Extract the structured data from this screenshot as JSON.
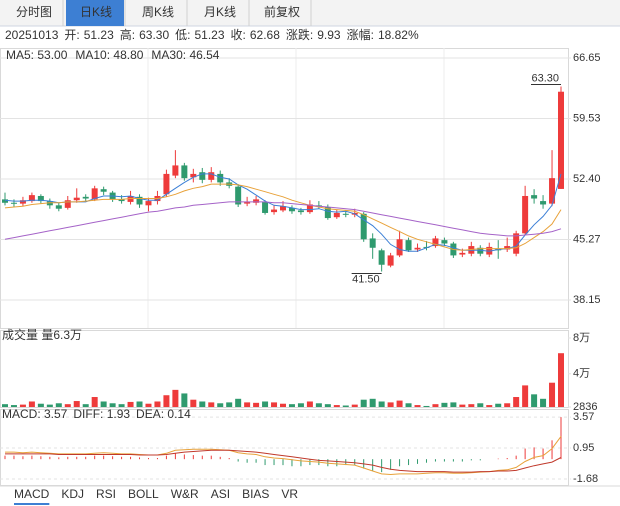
{
  "tabs": [
    "分时图",
    "日K线",
    "周K线",
    "月K线",
    "前复权"
  ],
  "active_tab": 1,
  "info": {
    "date": "20251013",
    "fields": [
      {
        "label": "开:",
        "value": "51.23",
        "color": "#3a9a8a"
      },
      {
        "label": "高:",
        "value": "63.30",
        "color": "#e83c3c"
      },
      {
        "label": "低:",
        "value": "51.23",
        "color": "#3a9a8a"
      },
      {
        "label": "收:",
        "value": "62.68",
        "color": "#e83c3c"
      },
      {
        "label": "涨跌:",
        "value": "9.93",
        "color": "#e83c3c"
      },
      {
        "label": "涨幅:",
        "value": "18.82%",
        "color": "#e83c3c"
      }
    ]
  },
  "indicator_tabs": [
    "MACD",
    "KDJ",
    "RSI",
    "BOLL",
    "W&R",
    "ASI",
    "BIAS",
    "VR"
  ],
  "active_indicator": 0,
  "chart_data": [
    {
      "type": "candlestick",
      "up_color": "#ee3b3b",
      "down_color": "#2f9a6e",
      "grid": true,
      "ylim": [
        34.85,
        67.83
      ],
      "yticks": [
        66.65,
        59.53,
        {
          "value": 52.4,
          "label": "52.40"
        },
        45.27,
        38.15
      ],
      "open": [
        50.0,
        49.6,
        49.5,
        49.8,
        50.4,
        49.8,
        49.3,
        49.0,
        49.9,
        50.3,
        50.0,
        51.2,
        50.8,
        50.0,
        49.7,
        50.3,
        49.3,
        49.8,
        50.6,
        52.8,
        54.0,
        52.6,
        53.2,
        52.3,
        53.0,
        52.0,
        51.5,
        49.5,
        49.6,
        49.7,
        48.5,
        48.7,
        49.0,
        48.7,
        48.5,
        49.3,
        49.1,
        47.9,
        48.3,
        48.2,
        48.3,
        45.4,
        44.0,
        42.2,
        43.4,
        45.2,
        44.1,
        44.4,
        44.5,
        45.2,
        44.8,
        43.5,
        43.6,
        44.3,
        43.5,
        44.2,
        44.1,
        43.6,
        46.0,
        50.5,
        49.8,
        49.5,
        51.23
      ],
      "high": [
        50.8,
        50.0,
        50.3,
        50.8,
        50.6,
        50.1,
        49.6,
        50.4,
        51.3,
        50.6,
        51.6,
        51.5,
        51.0,
        50.5,
        51.0,
        50.6,
        50.2,
        51.0,
        53.5,
        55.8,
        54.3,
        53.6,
        53.7,
        53.8,
        53.4,
        52.5,
        51.8,
        50.3,
        50.4,
        49.9,
        49.3,
        49.8,
        49.3,
        49.0,
        49.9,
        49.8,
        49.4,
        48.8,
        48.7,
        48.9,
        48.5,
        46.0,
        44.2,
        43.7,
        46.3,
        45.5,
        44.8,
        45.1,
        45.7,
        45.5,
        45.0,
        44.2,
        45.0,
        44.6,
        44.9,
        45.2,
        45.5,
        46.3,
        51.6,
        51.2,
        50.5,
        55.8,
        63.3
      ],
      "low": [
        49.3,
        49.1,
        49.2,
        49.6,
        49.5,
        48.9,
        48.6,
        48.8,
        49.6,
        49.7,
        49.8,
        50.5,
        49.7,
        49.5,
        49.4,
        49.0,
        48.6,
        49.4,
        50.3,
        52.5,
        52.2,
        52.0,
        51.9,
        52.0,
        51.6,
        51.3,
        49.1,
        49.2,
        49.3,
        48.2,
        48.2,
        48.5,
        48.3,
        48.2,
        48.3,
        48.9,
        47.6,
        47.7,
        47.9,
        47.9,
        45.0,
        43.0,
        41.5,
        42.0,
        43.2,
        43.8,
        43.8,
        44.0,
        44.3,
        44.5,
        43.1,
        43.2,
        43.3,
        43.3,
        43.2,
        43.0,
        43.8,
        43.3,
        45.8,
        49.5,
        48.9,
        49.2,
        51.23
      ],
      "close": [
        49.6,
        49.5,
        49.9,
        50.5,
        49.8,
        49.3,
        48.9,
        49.9,
        50.2,
        50.1,
        51.3,
        50.9,
        50.0,
        49.8,
        50.4,
        49.4,
        49.8,
        50.4,
        53.0,
        54.0,
        52.5,
        53.0,
        52.3,
        53.2,
        52.0,
        51.6,
        49.4,
        49.7,
        50.0,
        48.4,
        48.8,
        49.2,
        48.6,
        48.5,
        49.4,
        49.2,
        47.8,
        48.4,
        48.2,
        48.4,
        45.3,
        44.3,
        42.3,
        43.4,
        45.3,
        44.0,
        44.3,
        44.3,
        45.4,
        44.8,
        43.4,
        43.7,
        44.5,
        43.6,
        44.4,
        44.0,
        44.5,
        46.0,
        50.4,
        50.1,
        49.4,
        52.5,
        62.68
      ],
      "series": [
        {
          "name": "MA5: 53.00",
          "color": "#3b7fd6",
          "values": [
            49.9,
            49.8,
            49.8,
            49.9,
            49.9,
            49.8,
            49.6,
            49.7,
            49.7,
            49.7,
            50.1,
            50.4,
            50.4,
            50.3,
            50.4,
            50.1,
            49.9,
            49.9,
            50.6,
            51.3,
            52.0,
            52.6,
            53.0,
            53.0,
            52.6,
            52.4,
            51.7,
            51.2,
            50.5,
            49.8,
            49.3,
            49.2,
            49.0,
            48.8,
            48.8,
            48.9,
            48.6,
            48.5,
            48.6,
            48.3,
            47.6,
            46.9,
            45.9,
            44.7,
            44.1,
            43.9,
            43.9,
            44.3,
            44.7,
            44.6,
            44.3,
            44.0,
            44.0,
            44.0,
            43.9,
            44.1,
            44.2,
            44.5,
            45.8,
            47.0,
            48.0,
            49.3,
            53.0
          ]
        },
        {
          "name": "MA10: 48.80",
          "color": "#e8a23a",
          "values": [
            49.0,
            49.1,
            49.2,
            49.4,
            49.5,
            49.6,
            49.6,
            49.7,
            49.7,
            49.8,
            49.9,
            50.0,
            50.0,
            50.0,
            50.1,
            50.1,
            50.1,
            50.1,
            50.3,
            50.6,
            51.0,
            51.3,
            51.5,
            51.8,
            51.8,
            51.8,
            51.7,
            51.5,
            51.2,
            50.9,
            50.6,
            50.3,
            49.9,
            49.6,
            49.3,
            49.1,
            48.9,
            48.8,
            48.7,
            48.6,
            48.2,
            47.7,
            47.2,
            46.7,
            46.2,
            45.7,
            45.3,
            45.0,
            44.7,
            44.4,
            44.1,
            44.0,
            44.1,
            44.2,
            44.2,
            44.2,
            44.2,
            44.3,
            44.8,
            45.5,
            46.2,
            47.1,
            48.8
          ]
        },
        {
          "name": "MA30: 46.54",
          "color": "#a563c8",
          "values": [
            45.3,
            45.5,
            45.7,
            45.9,
            46.1,
            46.3,
            46.5,
            46.7,
            46.9,
            47.1,
            47.3,
            47.5,
            47.7,
            47.9,
            48.1,
            48.3,
            48.5,
            48.6,
            48.8,
            49.0,
            49.1,
            49.3,
            49.4,
            49.5,
            49.6,
            49.7,
            49.7,
            49.7,
            49.7,
            49.7,
            49.6,
            49.6,
            49.5,
            49.4,
            49.3,
            49.2,
            49.1,
            49.0,
            48.9,
            48.8,
            48.6,
            48.4,
            48.2,
            48.0,
            47.8,
            47.6,
            47.4,
            47.2,
            47.0,
            46.8,
            46.6,
            46.4,
            46.2,
            46.0,
            45.9,
            45.8,
            45.7,
            45.7,
            45.8,
            45.9,
            46.0,
            46.2,
            46.54
          ]
        }
      ],
      "annotations": [
        {
          "index": 62,
          "y": {
            "value": 63.3,
            "label": "63.30"
          }
        },
        {
          "index": 42,
          "y": {
            "value": 41.5,
            "label": "41.50"
          }
        }
      ]
    },
    {
      "type": "volume",
      "title": "成交量 量6.3万",
      "ylim": [
        2836,
        86709
      ],
      "yticks": [
        {
          "value": 80000,
          "label": "8万"
        },
        {
          "value": 40000,
          "label": "4万"
        },
        2836
      ],
      "values": [
        6000,
        5000,
        5500,
        9000,
        6500,
        5500,
        7000,
        6000,
        9500,
        6000,
        14000,
        9000,
        7000,
        6000,
        8500,
        9000,
        6500,
        9000,
        16000,
        22000,
        18000,
        11000,
        9000,
        8000,
        7000,
        8000,
        12000,
        8000,
        7500,
        9000,
        8000,
        6500,
        6000,
        7000,
        9000,
        7000,
        6000,
        5000,
        4500,
        5500,
        11000,
        12000,
        9000,
        8000,
        10000,
        7000,
        5000,
        4000,
        6000,
        7500,
        8000,
        5500,
        6000,
        7000,
        5000,
        6500,
        7000,
        14000,
        27000,
        17000,
        12000,
        30000,
        63000
      ]
    },
    {
      "type": "macd",
      "title": "MACD: 3.57",
      "ylim": [
        -2.19,
        4.17
      ],
      "yticks": [
        3.57,
        0.95,
        -1.68
      ],
      "up_color": "#ee3b3b",
      "down_color": "#2f9a6e",
      "values": [
        0.3,
        0.3,
        0.25,
        0.3,
        0.25,
        0.2,
        0.15,
        0.2,
        0.2,
        0.2,
        0.3,
        0.3,
        0.25,
        0.2,
        0.2,
        0.15,
        0.1,
        0.1,
        0.3,
        0.5,
        0.4,
        0.35,
        0.3,
        0.3,
        0.2,
        0.1,
        -0.2,
        -0.3,
        -0.3,
        -0.5,
        -0.5,
        -0.5,
        -0.6,
        -0.6,
        -0.5,
        -0.5,
        -0.6,
        -0.6,
        -0.5,
        -0.5,
        -0.8,
        -1.0,
        -1.1,
        -0.9,
        -0.6,
        -0.5,
        -0.4,
        -0.3,
        -0.2,
        -0.2,
        -0.2,
        -0.2,
        -0.1,
        -0.1,
        0.0,
        0.05,
        0.1,
        0.3,
        0.9,
        1.0,
        0.9,
        1.6,
        3.57
      ],
      "series": [
        {
          "name": "DIFF: 1.93",
          "color": "#e8a23a",
          "values": [
            0.6,
            0.6,
            0.55,
            0.6,
            0.55,
            0.5,
            0.45,
            0.45,
            0.45,
            0.45,
            0.5,
            0.55,
            0.5,
            0.45,
            0.45,
            0.4,
            0.35,
            0.35,
            0.5,
            0.75,
            0.8,
            0.85,
            0.85,
            0.85,
            0.8,
            0.75,
            0.55,
            0.45,
            0.4,
            0.2,
            0.1,
            0.05,
            -0.05,
            -0.15,
            -0.2,
            -0.25,
            -0.35,
            -0.4,
            -0.45,
            -0.5,
            -0.75,
            -1.0,
            -1.25,
            -1.3,
            -1.25,
            -1.25,
            -1.25,
            -1.2,
            -1.15,
            -1.15,
            -1.2,
            -1.2,
            -1.15,
            -1.1,
            -1.05,
            -0.95,
            -0.9,
            -0.7,
            -0.2,
            0.15,
            0.3,
            0.9,
            1.93
          ]
        },
        {
          "name": "DEA: 0.14",
          "color": "#c0392b",
          "values": [
            0.45,
            0.45,
            0.45,
            0.45,
            0.45,
            0.45,
            0.4,
            0.4,
            0.4,
            0.4,
            0.4,
            0.4,
            0.4,
            0.4,
            0.4,
            0.35,
            0.35,
            0.35,
            0.4,
            0.5,
            0.6,
            0.65,
            0.7,
            0.75,
            0.75,
            0.75,
            0.7,
            0.65,
            0.6,
            0.5,
            0.4,
            0.3,
            0.2,
            0.1,
            0.0,
            -0.1,
            -0.15,
            -0.2,
            -0.25,
            -0.3,
            -0.4,
            -0.5,
            -0.7,
            -0.85,
            -0.95,
            -1.0,
            -1.05,
            -1.05,
            -1.05,
            -1.05,
            -1.1,
            -1.1,
            -1.1,
            -1.05,
            -1.05,
            -1.0,
            -1.0,
            -0.95,
            -0.75,
            -0.55,
            -0.4,
            -0.25,
            0.14
          ]
        }
      ]
    }
  ]
}
